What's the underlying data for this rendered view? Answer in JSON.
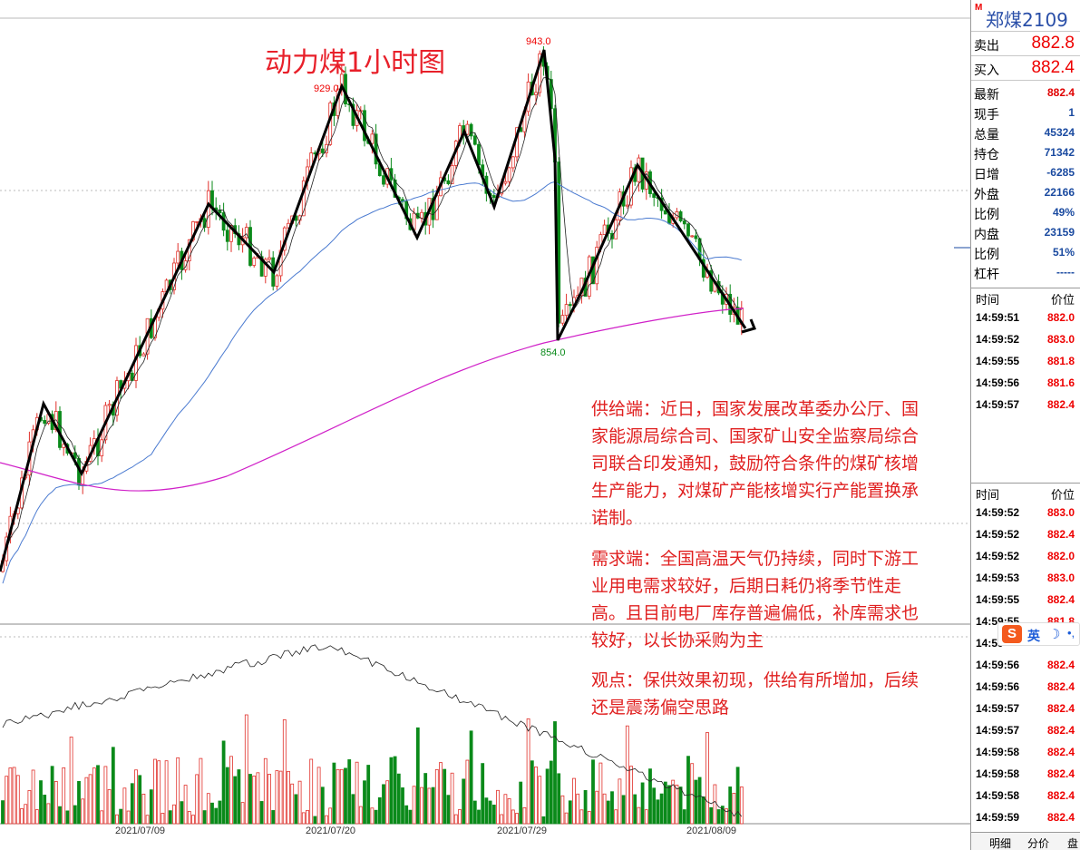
{
  "chart": {
    "title": "动力煤1小时图",
    "peak_label_1": "929.0",
    "peak_label_2": "943.0",
    "low_label": "854.0",
    "dates": [
      "2021/07/09",
      "2021/07/20",
      "2021/07/29",
      "2021/08/09"
    ],
    "colors": {
      "up": "#e0302a",
      "down": "#0a8a1a",
      "ma_long": "#d020c8",
      "ma_mid": "#4a7ad0",
      "wave": "#000000"
    }
  },
  "annotation": {
    "supply": "供给端：近日，国家发展改革委办公厅、国家能源局综合司、国家矿山安全监察局综合司联合印发通知，鼓励符合条件的煤矿核增生产能力，对煤矿产能核增实行产能置换承诺制。",
    "demand": "需求端：全国高温天气仍持续，同时下游工业用电需求较好，后期日耗仍将季节性走高。且目前电厂库存普遍偏低，补库需求也较好，以长协采购为主",
    "view": "观点：保供效果初现，供给有所增加，后续还是震荡偏空思路"
  },
  "panel": {
    "mark": "M",
    "code": "郑煤2109",
    "sell_label": "卖出",
    "sell_value": "882.8",
    "buy_label": "买入",
    "buy_value": "882.4",
    "stats": [
      {
        "label": "最新",
        "value": "882.4",
        "color": "#e00000"
      },
      {
        "label": "现手",
        "value": "1",
        "color": "#1a4aa0"
      },
      {
        "label": "总量",
        "value": "45324",
        "color": "#1a4aa0"
      },
      {
        "label": "持仓",
        "value": "71342",
        "color": "#1a4aa0"
      },
      {
        "label": "日增",
        "value": "-6285",
        "color": "#1a4aa0"
      },
      {
        "label": "外盘",
        "value": "22166",
        "color": "#1a4aa0"
      },
      {
        "label": "比例",
        "value": "49%",
        "color": "#1a4aa0"
      },
      {
        "label": "内盘",
        "value": "23159",
        "color": "#1a4aa0"
      },
      {
        "label": "比例",
        "value": "51%",
        "color": "#1a4aa0"
      },
      {
        "label": "杠杆",
        "value": "-----",
        "color": "#1a4aa0"
      }
    ],
    "tick_header_time": "时间",
    "tick_header_price": "价位",
    "ticks_a": [
      {
        "time": "14:59:51",
        "price": "882.0"
      },
      {
        "time": "14:59:52",
        "price": "883.0"
      },
      {
        "time": "14:59:55",
        "price": "881.8"
      },
      {
        "time": "14:59:56",
        "price": "881.6"
      },
      {
        "time": "14:59:57",
        "price": "882.4"
      }
    ],
    "ticks_b": [
      {
        "time": "14:59:52",
        "price": "883.0"
      },
      {
        "time": "14:59:52",
        "price": "882.4"
      },
      {
        "time": "14:59:52",
        "price": "882.0"
      },
      {
        "time": "14:59:53",
        "price": "883.0"
      },
      {
        "time": "14:59:55",
        "price": "882.4"
      },
      {
        "time": "14:59:55",
        "price": "881.8"
      },
      {
        "time": "14:59",
        "price": ""
      },
      {
        "time": "14:59:56",
        "price": "882.4"
      },
      {
        "time": "14:59:56",
        "price": "882.4"
      },
      {
        "time": "14:59:57",
        "price": "882.4"
      },
      {
        "time": "14:59:57",
        "price": "882.4"
      },
      {
        "time": "14:59:58",
        "price": "882.4"
      },
      {
        "time": "14:59:58",
        "price": "882.4"
      },
      {
        "time": "14:59:58",
        "price": "882.4"
      },
      {
        "time": "14:59:59",
        "price": "882.4"
      }
    ],
    "tabs": [
      "明细",
      "分价",
      "盘"
    ]
  },
  "ime": {
    "logo": "S",
    "mode": "英",
    "moon": "☽",
    "dots": "•,"
  }
}
